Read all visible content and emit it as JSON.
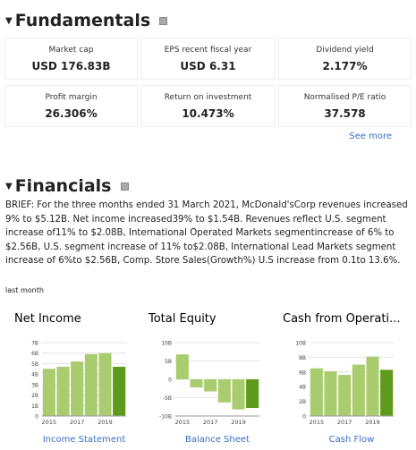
{
  "fundamentals": {
    "title": "Fundamentals",
    "cells": [
      {
        "label": "Market cap",
        "value": "USD 176.83B"
      },
      {
        "label": "EPS recent fiscal year",
        "value": "USD 6.31"
      },
      {
        "label": "Dividend yield",
        "value": "2.177%"
      },
      {
        "label": "Profit margin",
        "value": "26.306%"
      },
      {
        "label": "Return on investment",
        "value": "10.473%"
      },
      {
        "label": "Normalised P/E ratio",
        "value": "37.578"
      }
    ],
    "see_more": "See more"
  },
  "financials": {
    "title": "Financials",
    "brief": "BRIEF: For the three months ended 31 March 2021, McDonald'sCorp revenues increased 9% to $5.12B. Net income increased39% to $1.54B. Revenues reflect U.S. segment increase of11% to $2.08B, International Operated Markets segmentincrease of 6% to $2.56B, U.S. segment increase of 11% to$2.08B, International Lead Markets segment increase of 6%to $2.56B, Comp. Store Sales(Growth%) U.S increase from 0.1to 13.6%.",
    "period": "last month"
  },
  "chart_data": [
    {
      "type": "bar",
      "title": "Net Income",
      "link": "Income Statement",
      "categories": [
        "2015",
        null,
        "2017",
        null,
        "2019",
        null
      ],
      "values": [
        4.5,
        4.7,
        5.2,
        5.9,
        6.0,
        4.7
      ],
      "colors": [
        "#a9cc6e",
        "#a9cc6e",
        "#a9cc6e",
        "#a9cc6e",
        "#a9cc6e",
        "#5e9b1c"
      ],
      "ylim": [
        0,
        7
      ],
      "yticks": [
        0,
        {
          "value": 1,
          "label": "1B"
        },
        {
          "value": 2,
          "label": "2B"
        },
        {
          "value": 3,
          "label": "3B"
        },
        {
          "value": 4,
          "label": "4B"
        },
        {
          "value": 5,
          "label": "5B"
        },
        {
          "value": 6,
          "label": "6B"
        },
        {
          "value": 7,
          "label": "7B"
        }
      ],
      "grid": true
    },
    {
      "type": "bar",
      "title": "Total Equity",
      "link": "Balance Sheet",
      "categories": [
        "2015",
        null,
        "2017",
        null,
        "2019",
        null
      ],
      "values": [
        6.8,
        -2.2,
        -3.3,
        -6.3,
        -8.2,
        -7.8
      ],
      "colors": [
        "#a9cc6e",
        "#a9cc6e",
        "#a9cc6e",
        "#a9cc6e",
        "#a9cc6e",
        "#5e9b1c"
      ],
      "ylim": [
        -10,
        10
      ],
      "yticks": [
        {
          "value": -10,
          "label": "-10B"
        },
        {
          "value": -5,
          "label": "-5B"
        },
        0,
        {
          "value": 5,
          "label": "5B"
        },
        {
          "value": 10,
          "label": "10B"
        }
      ],
      "grid": true
    },
    {
      "type": "bar",
      "title": "Cash from Operati...",
      "link": "Cash Flow",
      "categories": [
        "2015",
        null,
        "2017",
        null,
        "2019",
        null
      ],
      "values": [
        6.5,
        6.1,
        5.6,
        7.0,
        8.1,
        6.3
      ],
      "colors": [
        "#a9cc6e",
        "#a9cc6e",
        "#a9cc6e",
        "#a9cc6e",
        "#a9cc6e",
        "#5e9b1c"
      ],
      "ylim": [
        0,
        10
      ],
      "yticks": [
        0,
        {
          "value": 2,
          "label": "2B"
        },
        {
          "value": 4,
          "label": "4B"
        },
        {
          "value": 6,
          "label": "6B"
        },
        {
          "value": 8,
          "label": "8B"
        },
        {
          "value": 10,
          "label": "10B"
        }
      ],
      "grid": true
    }
  ]
}
